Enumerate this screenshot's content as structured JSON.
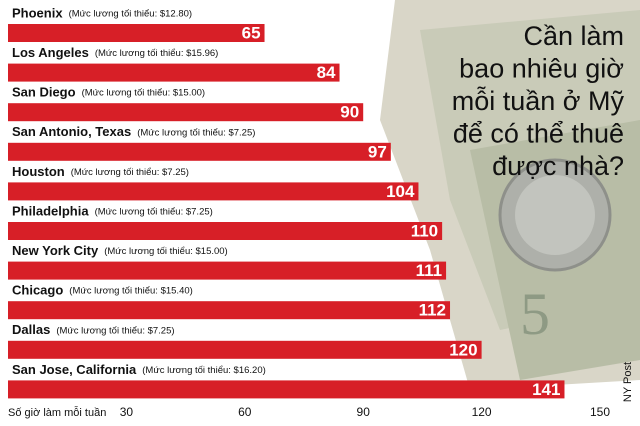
{
  "chart_data": {
    "type": "bar",
    "orientation": "horizontal",
    "title": [
      "Cần làm",
      "bao nhiêu giờ",
      "mỗi tuần ở Mỹ",
      "để có thể thuê",
      "được nhà?"
    ],
    "categories": [
      "Phoenix",
      "Los Angeles",
      "San Diego",
      "San Antonio, Texas",
      "Houston",
      "Philadelphia",
      "New York City",
      "Chicago",
      "Dallas",
      "San Jose, California"
    ],
    "notes": [
      "(Mức lương tối thiểu: $12.80)",
      "(Mức lương tối thiểu: $15.96)",
      "(Mức lương tối thiểu: $15.00)",
      "(Mức lương tối thiểu: $7.25)",
      "(Mức lương tối thiểu: $7.25)",
      "(Mức lương tối thiểu: $7.25)",
      "(Mức lương tối thiểu: $15.00)",
      "(Mức lương tối thiểu: $15.40)",
      "(Mức lương tối thiểu: $7.25)",
      "(Mức lương tối thiểu: $16.20)"
    ],
    "values": [
      65,
      84,
      90,
      97,
      104,
      110,
      111,
      112,
      120,
      141
    ],
    "color": "#d71f27",
    "xlim": [
      0,
      150
    ],
    "xticks": [
      30,
      60,
      90,
      120,
      150
    ],
    "x_label": "Số giờ làm mỗi tuần",
    "source": "NY Post"
  }
}
